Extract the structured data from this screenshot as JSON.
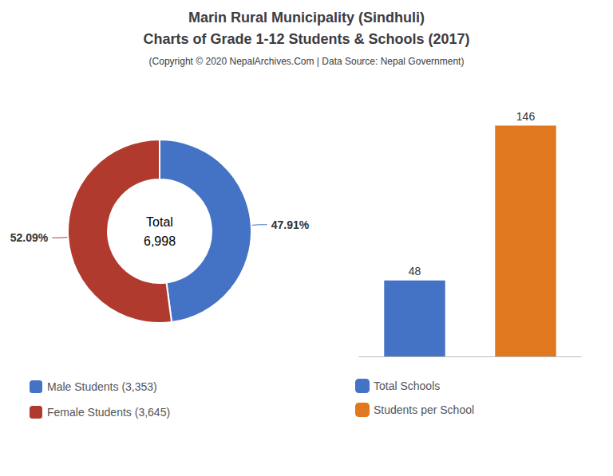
{
  "title": [
    "Marin Rural Municipality (Sindhuli)",
    "Charts of Grade 1-12 Students & Schools (2017)"
  ],
  "subtitle": "(Copyright © 2020 NepalArchives.Com | Data Source: Nepal Government)",
  "chart_data": [
    {
      "type": "pie",
      "categories": [
        "Male Students (3,353)",
        "Female Students (3,645)"
      ],
      "values": [
        47.91,
        52.09
      ],
      "value_labels": [
        "47.91%",
        "52.09%"
      ],
      "colors": [
        "#4472C4",
        "#B03A2E"
      ],
      "annotations": [
        "Total",
        "6,998"
      ],
      "data_labels": true,
      "legend": "bottom"
    },
    {
      "type": "bar",
      "categories": [
        "Total Schools",
        "Students per School"
      ],
      "values": [
        48,
        146
      ],
      "colors": [
        "#4472C4",
        "#E07820"
      ],
      "ylim": [
        0,
        170
      ],
      "tick_labels": false,
      "data_labels": true,
      "legend": "bottom"
    }
  ]
}
